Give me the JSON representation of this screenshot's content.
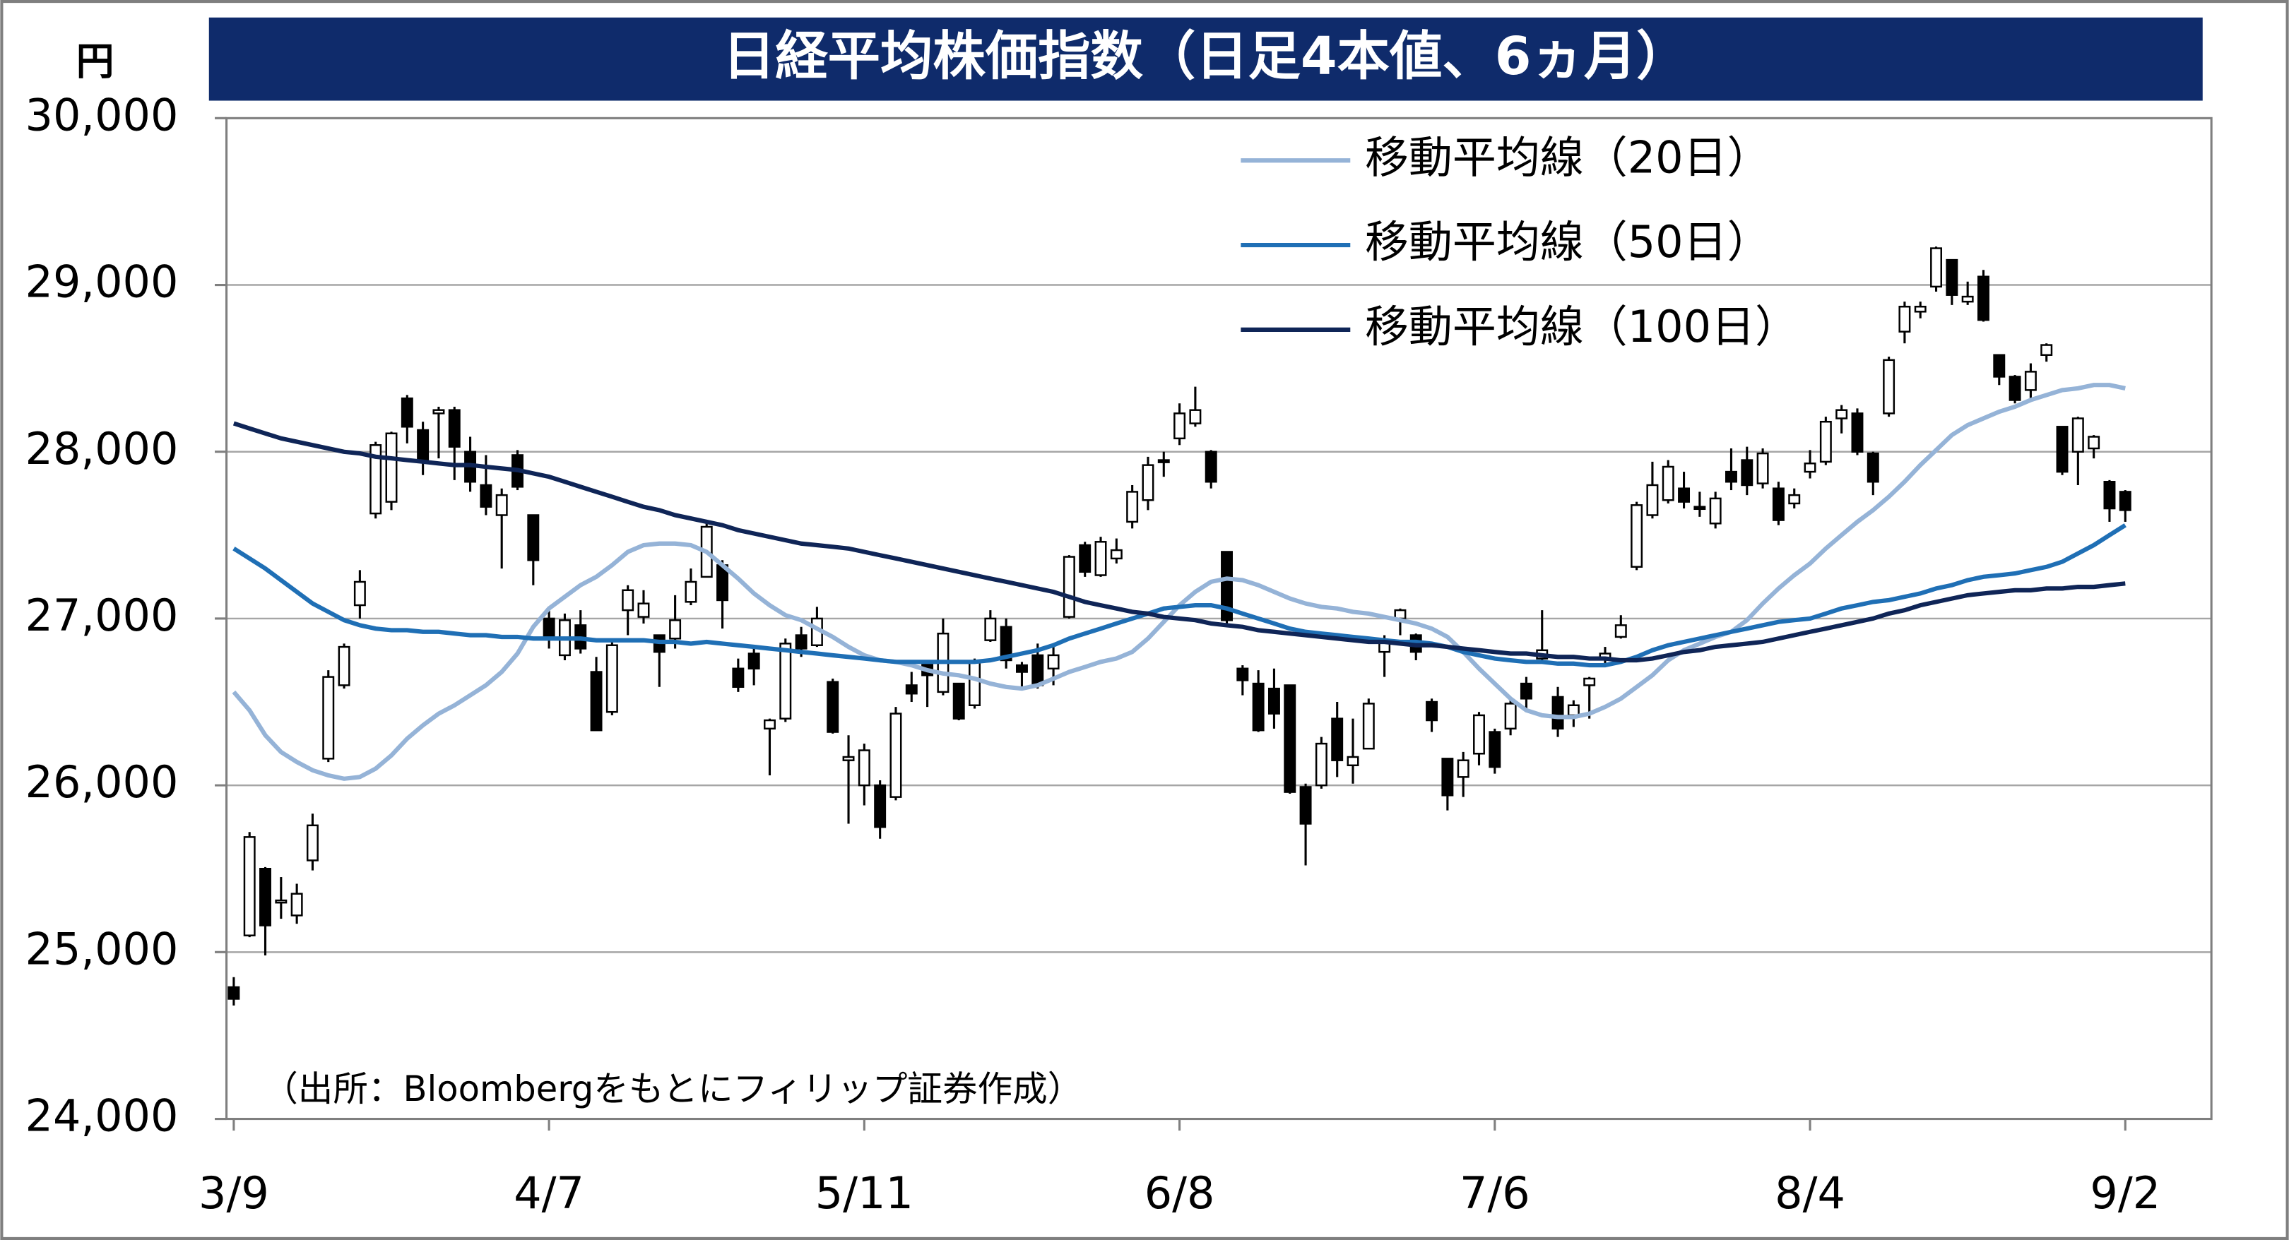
{
  "chart_data": {
    "type": "candlestick",
    "title": "日経平均株価指数（日足4本値、6ヵ月）",
    "y_label": "円",
    "source": "（出所：Bloombergをもとにフィリップ証券作成）",
    "categories": [
      "3/9",
      null,
      null,
      null,
      null,
      null,
      null,
      null,
      null,
      null,
      null,
      null,
      null,
      null,
      null,
      null,
      null,
      null,
      null,
      null,
      "4/7",
      null,
      null,
      null,
      null,
      null,
      null,
      null,
      null,
      null,
      null,
      null,
      null,
      null,
      null,
      null,
      null,
      null,
      null,
      null,
      "5/11",
      null,
      null,
      null,
      null,
      null,
      null,
      null,
      null,
      null,
      null,
      null,
      null,
      null,
      null,
      null,
      null,
      null,
      null,
      null,
      "6/8",
      null,
      null,
      null,
      null,
      null,
      null,
      null,
      null,
      null,
      null,
      null,
      null,
      null,
      null,
      null,
      null,
      null,
      null,
      null,
      "7/6",
      null,
      null,
      null,
      null,
      null,
      null,
      null,
      null,
      null,
      null,
      null,
      null,
      null,
      null,
      null,
      null,
      null,
      null,
      null,
      "8/4",
      null,
      null,
      null,
      null,
      null,
      null,
      null,
      null,
      null,
      null,
      null,
      null,
      null,
      null,
      null,
      null,
      null,
      null,
      null,
      "9/2"
    ],
    "open": [
      24790,
      25100,
      25500,
      25300,
      25220,
      25550,
      26160,
      26600,
      27080,
      27630,
      27700,
      28320,
      28130,
      28230,
      28250,
      28000,
      27800,
      27620,
      27980,
      27620,
      27000,
      26780,
      26960,
      26680,
      26440,
      27050,
      27010,
      26900,
      26880,
      27100,
      27250,
      27320,
      26700,
      26790,
      26340,
      26400,
      26900,
      26840,
      26620,
      26150,
      26000,
      26000,
      25930,
      26600,
      26730,
      26560,
      26610,
      26480,
      26870,
      26950,
      26720,
      26780,
      26700,
      27010,
      27440,
      27260,
      27360,
      27580,
      27710,
      27950,
      28080,
      28170,
      28000,
      27400,
      26700,
      26610,
      26580,
      26600,
      25990,
      26000,
      26400,
      26120,
      26220,
      26800,
      27000,
      26900,
      26500,
      26160,
      26050,
      26190,
      26320,
      26340,
      26610,
      26760,
      26530,
      26420,
      26600,
      26760,
      26890,
      27310,
      27620,
      27710,
      27780,
      27670,
      27570,
      27880,
      27950,
      27810,
      27780,
      27690,
      27880,
      27940,
      28200,
      28230,
      27990,
      28230,
      28720,
      28840,
      28990,
      29150,
      28900,
      29050,
      28580,
      28450,
      28370,
      28580,
      28150,
      28000,
      28020,
      27820,
      27760
    ],
    "high": [
      24850,
      25720,
      25510,
      25450,
      25410,
      25830,
      26690,
      26850,
      27290,
      28060,
      28120,
      28340,
      28180,
      28270,
      28270,
      28090,
      27980,
      27780,
      28010,
      27620,
      27050,
      27030,
      27050,
      26770,
      26880,
      27200,
      27170,
      26900,
      27140,
      27300,
      27580,
      27350,
      26760,
      26840,
      26400,
      26880,
      26950,
      27070,
      26640,
      26300,
      26250,
      26030,
      26470,
      26680,
      26740,
      27000,
      26610,
      26760,
      27050,
      27000,
      26740,
      26850,
      26830,
      27380,
      27460,
      27490,
      27480,
      27800,
      27970,
      28000,
      28290,
      28390,
      28010,
      27400,
      26720,
      26690,
      26700,
      26600,
      26010,
      26290,
      26500,
      26400,
      26520,
      26900,
      27060,
      26910,
      26520,
      26160,
      26200,
      26440,
      26340,
      26520,
      26650,
      27050,
      26590,
      26510,
      26650,
      26830,
      27020,
      27700,
      27940,
      27950,
      27880,
      27760,
      27760,
      28020,
      28030,
      28020,
      27820,
      27780,
      28010,
      28210,
      28280,
      28260,
      28000,
      28570,
      28900,
      28900,
      29230,
      29150,
      29020,
      29090,
      28580,
      28460,
      28530,
      28650,
      28150,
      28210,
      28100,
      27830,
      27770
    ],
    "low": [
      24680,
      25090,
      24980,
      25200,
      25170,
      25490,
      26140,
      26580,
      27000,
      27600,
      27650,
      28050,
      27860,
      27960,
      27830,
      27760,
      27620,
      27300,
      27770,
      27200,
      26820,
      26750,
      26790,
      26330,
      26420,
      26900,
      26970,
      26590,
      26820,
      27080,
      27250,
      26940,
      26560,
      26600,
      26060,
      26380,
      26770,
      26830,
      26310,
      25770,
      25880,
      25680,
      25910,
      26500,
      26470,
      26540,
      26390,
      26460,
      26860,
      26700,
      26580,
      26580,
      26600,
      27000,
      27250,
      27250,
      27330,
      27540,
      27650,
      27850,
      28040,
      28150,
      27780,
      26950,
      26540,
      26320,
      26340,
      25950,
      25520,
      25980,
      26050,
      26010,
      26220,
      26650,
      26900,
      26750,
      26320,
      25850,
      25930,
      26120,
      26070,
      26300,
      26450,
      26740,
      26290,
      26350,
      26400,
      26720,
      26880,
      27290,
      27600,
      27690,
      27660,
      27610,
      27540,
      27770,
      27740,
      27780,
      27560,
      27660,
      27840,
      27920,
      28110,
      27980,
      27740,
      28210,
      28650,
      28800,
      28960,
      28880,
      28880,
      28780,
      28400,
      28290,
      28300,
      28540,
      27860,
      27800,
      27960,
      27580,
      27580
    ],
    "close": [
      24720,
      25690,
      25160,
      25310,
      25350,
      25760,
      26650,
      26830,
      27220,
      28040,
      28110,
      28150,
      27940,
      28250,
      28030,
      27820,
      27670,
      27740,
      27790,
      27350,
      26890,
      26990,
      26820,
      26330,
      26840,
      27170,
      27090,
      26800,
      26990,
      27220,
      27550,
      27110,
      26590,
      26700,
      26390,
      26850,
      26820,
      27000,
      26320,
      26170,
      26210,
      25750,
      26430,
      26550,
      26660,
      26910,
      26400,
      26740,
      27000,
      26750,
      26680,
      26600,
      26780,
      27370,
      27280,
      27460,
      27410,
      27760,
      27920,
      27940,
      28230,
      28250,
      27820,
      26990,
      26630,
      26330,
      26430,
      25960,
      25770,
      26250,
      26150,
      26170,
      26490,
      26870,
      27050,
      26800,
      26390,
      25940,
      26150,
      26420,
      26110,
      26490,
      26520,
      26810,
      26340,
      26480,
      26640,
      26790,
      26960,
      27680,
      27800,
      27910,
      27700,
      27660,
      27720,
      27820,
      27800,
      27990,
      27590,
      27740,
      27930,
      28180,
      28250,
      28000,
      27820,
      28550,
      28870,
      28870,
      29220,
      28940,
      28930,
      28790,
      28450,
      28310,
      28480,
      28640,
      27880,
      28200,
      28090,
      27660,
      27650
    ],
    "up_color": "#ffffff",
    "down_color": "#000000",
    "series": [
      {
        "name": "移動平均線（20日）",
        "color": "#95b3d7",
        "values": [
          26560,
          26450,
          26300,
          26200,
          26140,
          26090,
          26060,
          26040,
          26050,
          26100,
          26180,
          26280,
          26360,
          26430,
          26480,
          26540,
          26600,
          26680,
          26790,
          26950,
          27060,
          27130,
          27200,
          27250,
          27320,
          27400,
          27440,
          27450,
          27450,
          27440,
          27400,
          27320,
          27240,
          27150,
          27080,
          27020,
          26990,
          26940,
          26890,
          26830,
          26780,
          26750,
          26740,
          26720,
          26690,
          26670,
          26660,
          26640,
          26610,
          26590,
          26580,
          26600,
          26640,
          26680,
          26710,
          26740,
          26760,
          26800,
          26880,
          26980,
          27080,
          27160,
          27220,
          27240,
          27230,
          27200,
          27160,
          27120,
          27090,
          27070,
          27060,
          27040,
          27030,
          27010,
          26990,
          26970,
          26940,
          26890,
          26800,
          26700,
          26610,
          26520,
          26450,
          26420,
          26410,
          26410,
          26430,
          26470,
          26520,
          26590,
          26660,
          26750,
          26810,
          26850,
          26890,
          26920,
          26990,
          27090,
          27180,
          27260,
          27330,
          27420,
          27500,
          27580,
          27650,
          27730,
          27820,
          27920,
          28010,
          28100,
          28160,
          28200,
          28240,
          28270,
          28310,
          28340,
          28370,
          28380,
          28400,
          28400,
          28380
        ]
      },
      {
        "name": "移動平均線（50日）",
        "color": "#1f6fb5",
        "values": [
          27420,
          27360,
          27300,
          27230,
          27160,
          27090,
          27040,
          26990,
          26960,
          26940,
          26930,
          26930,
          26920,
          26920,
          26910,
          26900,
          26900,
          26890,
          26890,
          26880,
          26880,
          26880,
          26880,
          26870,
          26870,
          26870,
          26870,
          26860,
          26860,
          26850,
          26860,
          26850,
          26840,
          26830,
          26820,
          26810,
          26800,
          26790,
          26780,
          26770,
          26760,
          26750,
          26740,
          26740,
          26740,
          26740,
          26740,
          26740,
          26750,
          26770,
          26790,
          26810,
          26840,
          26880,
          26910,
          26940,
          26970,
          27000,
          27030,
          27060,
          27070,
          27080,
          27080,
          27060,
          27030,
          27000,
          26970,
          26940,
          26920,
          26910,
          26900,
          26890,
          26880,
          26870,
          26860,
          26860,
          26850,
          26830,
          26800,
          26780,
          26760,
          26750,
          26740,
          26740,
          26730,
          26730,
          26720,
          26720,
          26740,
          26770,
          26810,
          26840,
          26860,
          26880,
          26900,
          26920,
          26940,
          26960,
          26980,
          26990,
          27000,
          27030,
          27060,
          27080,
          27100,
          27110,
          27130,
          27150,
          27180,
          27200,
          27230,
          27250,
          27260,
          27270,
          27290,
          27310,
          27340,
          27390,
          27440,
          27500,
          27560
        ]
      },
      {
        "name": "移動平均線（100日）",
        "color": "#0f2557",
        "values": [
          28170,
          28140,
          28110,
          28080,
          28060,
          28040,
          28020,
          28000,
          27990,
          27970,
          27960,
          27950,
          27940,
          27930,
          27920,
          27920,
          27910,
          27900,
          27890,
          27870,
          27850,
          27820,
          27790,
          27760,
          27730,
          27700,
          27670,
          27650,
          27620,
          27600,
          27580,
          27560,
          27530,
          27510,
          27490,
          27470,
          27450,
          27440,
          27430,
          27420,
          27400,
          27380,
          27360,
          27340,
          27320,
          27300,
          27280,
          27260,
          27240,
          27220,
          27200,
          27180,
          27160,
          27130,
          27100,
          27080,
          27060,
          27040,
          27030,
          27010,
          27000,
          26990,
          26970,
          26960,
          26950,
          26930,
          26920,
          26910,
          26900,
          26890,
          26880,
          26870,
          26860,
          26860,
          26850,
          26840,
          26840,
          26830,
          26820,
          26810,
          26800,
          26790,
          26790,
          26780,
          26770,
          26770,
          26760,
          26760,
          26750,
          26750,
          26760,
          26780,
          26800,
          26810,
          26830,
          26840,
          26850,
          26860,
          26880,
          26900,
          26920,
          26940,
          26960,
          26980,
          27000,
          27030,
          27050,
          27080,
          27100,
          27120,
          27140,
          27150,
          27160,
          27170,
          27170,
          27180,
          27180,
          27190,
          27190,
          27200,
          27210
        ]
      }
    ],
    "ylim": [
      24000,
      30000
    ],
    "yticks": [
      {
        "value": 24000,
        "label": "24,000"
      },
      {
        "value": 25000,
        "label": "25,000"
      },
      {
        "value": 26000,
        "label": "26,000"
      },
      {
        "value": 27000,
        "label": "27,000"
      },
      {
        "value": 28000,
        "label": "28,000"
      },
      {
        "value": 29000,
        "label": "29,000"
      },
      {
        "value": 30000,
        "label": "30,000"
      }
    ],
    "grid": true,
    "legend": "upper right"
  }
}
